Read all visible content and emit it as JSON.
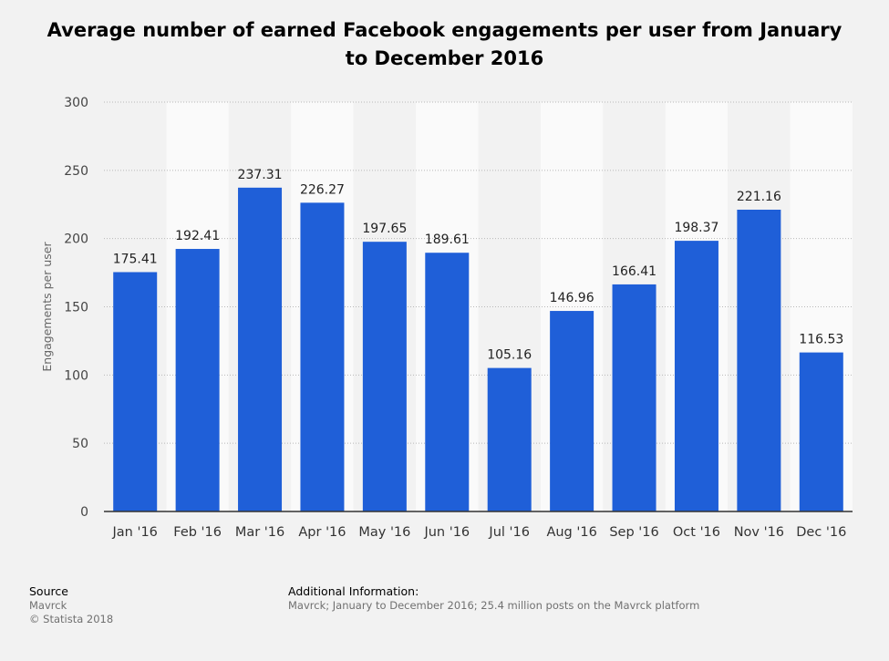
{
  "chart_data": {
    "type": "bar",
    "title": "Average number of earned Facebook engagements per user from January to December 2016",
    "xlabel": "",
    "ylabel": "Engagements per user",
    "categories": [
      "Jan '16",
      "Feb '16",
      "Mar '16",
      "Apr '16",
      "May '16",
      "Jun '16",
      "Jul '16",
      "Aug '16",
      "Sep '16",
      "Oct '16",
      "Nov '16",
      "Dec '16"
    ],
    "values": [
      175.41,
      192.41,
      237.31,
      226.27,
      197.65,
      189.61,
      105.16,
      146.96,
      166.41,
      198.37,
      221.16,
      116.53
    ],
    "value_labels": [
      "175.41",
      "192.41",
      "237.31",
      "226.27",
      "197.65",
      "189.61",
      "105.16",
      "146.96",
      "166.41",
      "198.37",
      "221.16",
      "116.53"
    ],
    "ylim": [
      0,
      300
    ],
    "yticks": [
      0,
      50,
      100,
      150,
      200,
      250,
      300
    ],
    "grid": true,
    "legend": "none",
    "bar_color": "#1f5fd8"
  },
  "footer": {
    "source_heading": "Source",
    "source_name": "Mavrck",
    "copyright": "© Statista 2018",
    "info_heading": "Additional Information:",
    "info_text": "Mavrck; January to December 2016; 25.4 million posts on the Mavrck platform"
  }
}
